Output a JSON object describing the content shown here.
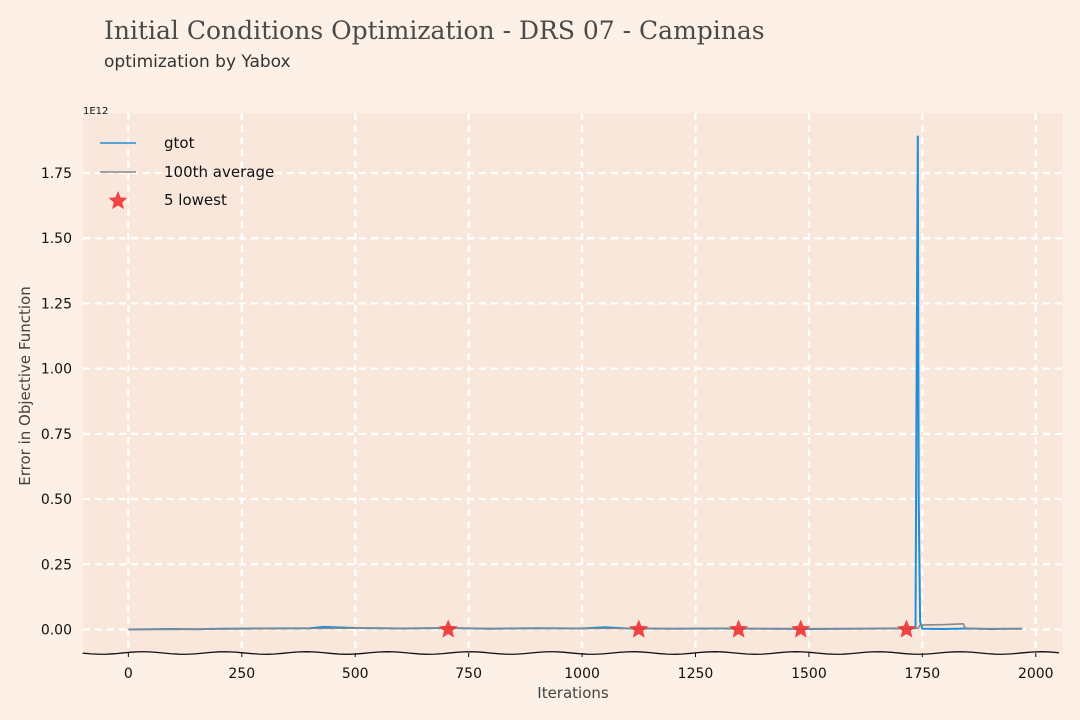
{
  "title": "Initial Conditions Optimization - DRS 07 - Campinas",
  "subtitle": "optimization by Yabox",
  "chart_data": {
    "type": "line",
    "xlabel": "Iterations",
    "ylabel": "Error in Objective Function",
    "y_scale_label": "1E12",
    "xlim": [
      -100,
      2060
    ],
    "ylim": [
      -0.09,
      1.98
    ],
    "x_ticks": [
      0,
      250,
      500,
      750,
      1000,
      1250,
      1500,
      1750,
      2000
    ],
    "x_tick_labels": [
      "0",
      "250",
      "500",
      "750",
      "1000",
      "1250",
      "1500",
      "1750",
      "2000"
    ],
    "y_ticks": [
      0.0,
      0.25,
      0.5,
      0.75,
      1.0,
      1.25,
      1.5,
      1.75
    ],
    "y_tick_labels": [
      "0.00",
      "0.25",
      "0.50",
      "0.75",
      "1.00",
      "1.25",
      "1.50",
      "1.75"
    ],
    "grid": true,
    "legend_position": "top-left",
    "legend": [
      "gtot",
      "100th average",
      "5 lowest"
    ],
    "series": [
      {
        "name": "gtot",
        "color": "#1f8fd6",
        "x": [
          0,
          100,
          150,
          200,
          300,
          400,
          430,
          500,
          600,
          700,
          800,
          900,
          1000,
          1050,
          1100,
          1200,
          1300,
          1400,
          1500,
          1600,
          1700,
          1735,
          1738,
          1740,
          1742,
          1745,
          1750,
          1800,
          1850,
          1900,
          1970
        ],
        "y": [
          0.0,
          0.002,
          0.001,
          0.003,
          0.004,
          0.005,
          0.01,
          0.006,
          0.004,
          0.006,
          0.003,
          0.005,
          0.004,
          0.009,
          0.004,
          0.003,
          0.004,
          0.003,
          0.002,
          0.003,
          0.004,
          0.005,
          1.2,
          1.89,
          0.5,
          0.03,
          0.003,
          0.002,
          0.004,
          0.002,
          0.003
        ]
      },
      {
        "name": "100th average",
        "color": "#888888",
        "x": [
          0,
          100,
          200,
          300,
          400,
          500,
          600,
          700,
          800,
          900,
          1000,
          1100,
          1200,
          1300,
          1400,
          1500,
          1600,
          1700,
          1740,
          1745,
          1800,
          1840,
          1845,
          1970
        ],
        "y": [
          0.0,
          0.001,
          0.002,
          0.003,
          0.004,
          0.005,
          0.004,
          0.005,
          0.004,
          0.004,
          0.004,
          0.004,
          0.003,
          0.004,
          0.003,
          0.003,
          0.003,
          0.004,
          0.004,
          0.017,
          0.019,
          0.022,
          0.004,
          0.003
        ]
      }
    ],
    "lowest": {
      "name": "5 lowest",
      "color": "#ee3333",
      "x": [
        705,
        1125,
        1345,
        1482,
        1715
      ],
      "y": [
        0.0,
        0.0,
        0.0,
        0.0,
        0.0
      ]
    }
  }
}
